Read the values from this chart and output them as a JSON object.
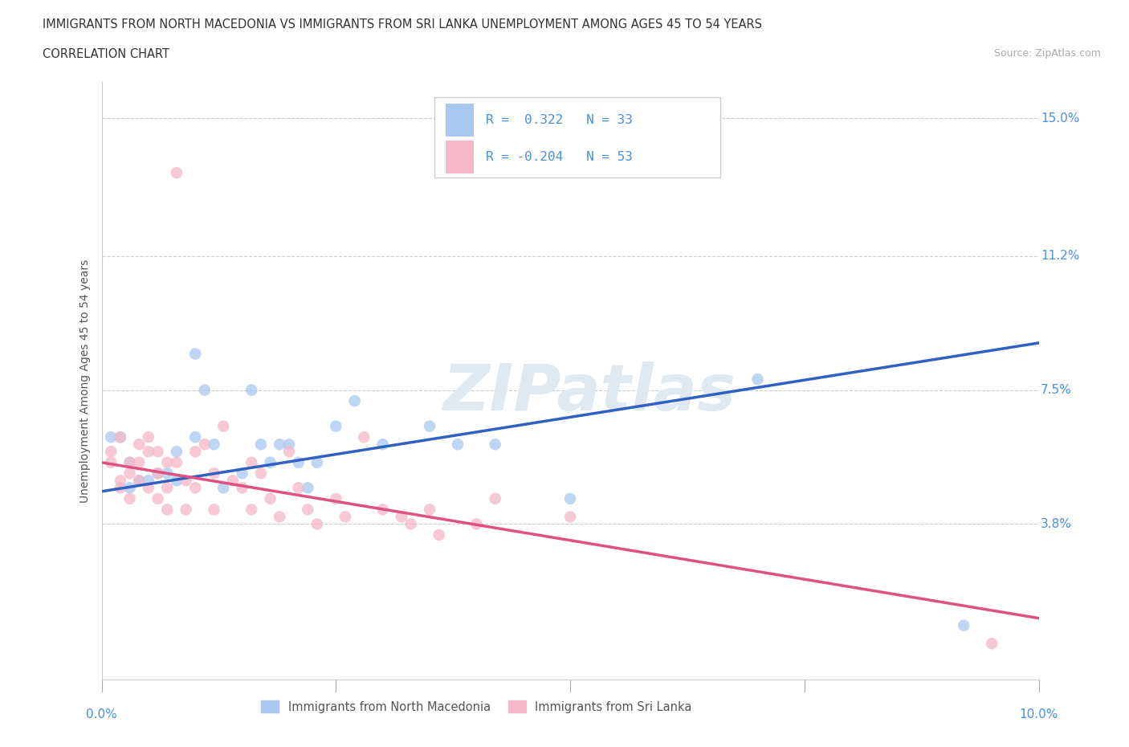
{
  "title_line1": "IMMIGRANTS FROM NORTH MACEDONIA VS IMMIGRANTS FROM SRI LANKA UNEMPLOYMENT AMONG AGES 45 TO 54 YEARS",
  "title_line2": "CORRELATION CHART",
  "source_text": "Source: ZipAtlas.com",
  "ylabel": "Unemployment Among Ages 45 to 54 years",
  "xlim": [
    0.0,
    0.1
  ],
  "ylim": [
    -0.005,
    0.16
  ],
  "yticks": [
    0.038,
    0.075,
    0.112,
    0.15
  ],
  "ytick_labels": [
    "3.8%",
    "7.5%",
    "11.2%",
    "15.0%"
  ],
  "legend_r1": "R =  0.322",
  "legend_n1": "N = 33",
  "legend_r2": "R = -0.204",
  "legend_n2": "N = 53",
  "color_macedonia": "#a8c8f0",
  "color_srilanka": "#f5b8c8",
  "color_line_macedonia": "#3060c0",
  "color_line_srilanka": "#e05080",
  "watermark": "ZIPatlas",
  "blue_scatter": [
    [
      0.001,
      0.062
    ],
    [
      0.002,
      0.062
    ],
    [
      0.003,
      0.055
    ],
    [
      0.003,
      0.048
    ],
    [
      0.004,
      0.05
    ],
    [
      0.005,
      0.05
    ],
    [
      0.006,
      0.052
    ],
    [
      0.007,
      0.052
    ],
    [
      0.008,
      0.058
    ],
    [
      0.008,
      0.05
    ],
    [
      0.01,
      0.085
    ],
    [
      0.01,
      0.062
    ],
    [
      0.011,
      0.075
    ],
    [
      0.012,
      0.06
    ],
    [
      0.013,
      0.048
    ],
    [
      0.015,
      0.052
    ],
    [
      0.016,
      0.075
    ],
    [
      0.017,
      0.06
    ],
    [
      0.018,
      0.055
    ],
    [
      0.019,
      0.06
    ],
    [
      0.02,
      0.06
    ],
    [
      0.021,
      0.055
    ],
    [
      0.022,
      0.048
    ],
    [
      0.023,
      0.055
    ],
    [
      0.025,
      0.065
    ],
    [
      0.027,
      0.072
    ],
    [
      0.03,
      0.06
    ],
    [
      0.035,
      0.065
    ],
    [
      0.038,
      0.06
    ],
    [
      0.042,
      0.06
    ],
    [
      0.05,
      0.045
    ],
    [
      0.07,
      0.078
    ],
    [
      0.092,
      0.01
    ]
  ],
  "pink_scatter": [
    [
      0.001,
      0.058
    ],
    [
      0.001,
      0.055
    ],
    [
      0.002,
      0.062
    ],
    [
      0.002,
      0.05
    ],
    [
      0.002,
      0.048
    ],
    [
      0.003,
      0.055
    ],
    [
      0.003,
      0.052
    ],
    [
      0.003,
      0.045
    ],
    [
      0.004,
      0.06
    ],
    [
      0.004,
      0.055
    ],
    [
      0.004,
      0.05
    ],
    [
      0.005,
      0.062
    ],
    [
      0.005,
      0.058
    ],
    [
      0.005,
      0.048
    ],
    [
      0.006,
      0.058
    ],
    [
      0.006,
      0.052
    ],
    [
      0.006,
      0.045
    ],
    [
      0.007,
      0.055
    ],
    [
      0.007,
      0.048
    ],
    [
      0.007,
      0.042
    ],
    [
      0.008,
      0.135
    ],
    [
      0.008,
      0.055
    ],
    [
      0.009,
      0.05
    ],
    [
      0.009,
      0.042
    ],
    [
      0.01,
      0.058
    ],
    [
      0.01,
      0.048
    ],
    [
      0.011,
      0.06
    ],
    [
      0.012,
      0.052
    ],
    [
      0.012,
      0.042
    ],
    [
      0.013,
      0.065
    ],
    [
      0.014,
      0.05
    ],
    [
      0.015,
      0.048
    ],
    [
      0.016,
      0.055
    ],
    [
      0.016,
      0.042
    ],
    [
      0.017,
      0.052
    ],
    [
      0.018,
      0.045
    ],
    [
      0.019,
      0.04
    ],
    [
      0.02,
      0.058
    ],
    [
      0.021,
      0.048
    ],
    [
      0.022,
      0.042
    ],
    [
      0.023,
      0.038
    ],
    [
      0.025,
      0.045
    ],
    [
      0.026,
      0.04
    ],
    [
      0.028,
      0.062
    ],
    [
      0.03,
      0.042
    ],
    [
      0.032,
      0.04
    ],
    [
      0.033,
      0.038
    ],
    [
      0.035,
      0.042
    ],
    [
      0.036,
      0.035
    ],
    [
      0.04,
      0.038
    ],
    [
      0.042,
      0.045
    ],
    [
      0.05,
      0.04
    ],
    [
      0.095,
      0.005
    ]
  ],
  "line_macedonia": {
    "x0": 0.0,
    "y0": 0.047,
    "x1": 0.1,
    "y1": 0.088
  },
  "line_srilanka": {
    "x0": 0.0,
    "y0": 0.055,
    "x1": 0.1,
    "y1": 0.012
  }
}
